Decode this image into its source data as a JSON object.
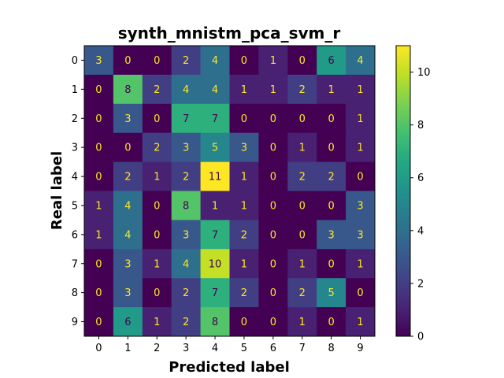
{
  "chart_data": {
    "type": "heatmap",
    "title": "synth_mnistm_pca_svm_r",
    "xlabel": "Predicted label",
    "ylabel": "Real label",
    "x_categories": [
      "0",
      "1",
      "2",
      "3",
      "4",
      "5",
      "6",
      "7",
      "8",
      "9"
    ],
    "y_categories": [
      "0",
      "1",
      "2",
      "3",
      "4",
      "5",
      "6",
      "7",
      "8",
      "9"
    ],
    "values": [
      [
        3,
        0,
        0,
        2,
        4,
        0,
        1,
        0,
        6,
        4
      ],
      [
        0,
        8,
        2,
        4,
        4,
        1,
        1,
        2,
        1,
        1
      ],
      [
        0,
        3,
        0,
        7,
        7,
        0,
        0,
        0,
        0,
        1
      ],
      [
        0,
        0,
        2,
        3,
        5,
        3,
        0,
        1,
        0,
        1
      ],
      [
        0,
        2,
        1,
        2,
        11,
        1,
        0,
        2,
        2,
        0
      ],
      [
        1,
        4,
        0,
        8,
        1,
        1,
        0,
        0,
        0,
        3
      ],
      [
        1,
        4,
        0,
        3,
        7,
        2,
        0,
        0,
        3,
        3
      ],
      [
        0,
        3,
        1,
        4,
        10,
        1,
        0,
        1,
        0,
        1
      ],
      [
        0,
        3,
        0,
        2,
        7,
        2,
        0,
        2,
        5,
        0
      ],
      [
        0,
        6,
        1,
        2,
        8,
        0,
        0,
        1,
        0,
        1
      ]
    ],
    "colormap": "viridis",
    "vmin": 0,
    "vmax": 11,
    "colorbar_ticks": [
      0,
      2,
      4,
      6,
      8,
      10
    ],
    "text_color_dark": "#440154",
    "text_color_light": "#fde725"
  }
}
